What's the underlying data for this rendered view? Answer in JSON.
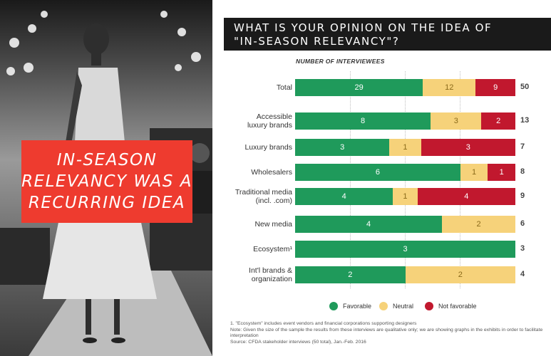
{
  "callout": {
    "lines": [
      "IN-SEASON",
      "RELEVANCY WAS A",
      "RECURRING IDEA"
    ]
  },
  "chart_data": {
    "type": "bar",
    "orientation": "horizontal",
    "stacked": true,
    "title": "WHAT IS YOUR OPINION ON THE IDEA OF \"IN-SEASON RELEVANCY\"?",
    "title_lines": [
      "WHAT IS YOUR OPINION ON THE IDEA OF",
      "\"IN-SEASON RELEVANCY\"?"
    ],
    "subtitle": "NUMBER OF INTERVIEWEES",
    "categories": [
      "Total",
      "Accessible luxury brands",
      "Luxury brands",
      "Wholesalers",
      "Traditional media (incl. .com)",
      "New media",
      "Ecosystem¹",
      "Int'l brands & organization"
    ],
    "category_lines": [
      [
        "Total"
      ],
      [
        "Accessible",
        "luxury brands"
      ],
      [
        "Luxury brands"
      ],
      [
        "Wholesalers"
      ],
      [
        "Traditional media",
        "(incl. .com)"
      ],
      [
        "New media"
      ],
      [
        "Ecosystem¹"
      ],
      [
        "Int'l brands &",
        "organization"
      ]
    ],
    "series": [
      {
        "name": "Favorable",
        "color": "#1f9a5b",
        "values": [
          29,
          8,
          3,
          6,
          4,
          4,
          3,
          2
        ]
      },
      {
        "name": "Neutral",
        "color": "#f6d27a",
        "values": [
          12,
          3,
          1,
          1,
          1,
          2,
          0,
          2
        ]
      },
      {
        "name": "Not favorable",
        "color": "#c1182e",
        "values": [
          9,
          2,
          3,
          1,
          4,
          0,
          0,
          0
        ]
      }
    ],
    "totals": [
      50,
      13,
      7,
      8,
      9,
      6,
      3,
      4
    ],
    "xlim": [
      0,
      100
    ],
    "scale": "percent of row total",
    "legend_position": "bottom",
    "grid": true
  },
  "footnotes": [
    "1. \"Ecosystem\" includes event vendors and financial corporations supporting designers",
    "Note: Given the size of the sample the results from these interviews are qualitative only; we are showing graphs in the exhibits in order to facilitate interpretation",
    "Source: CFDA stakeholder interviews (50 total), Jan.-Feb. 2016"
  ]
}
